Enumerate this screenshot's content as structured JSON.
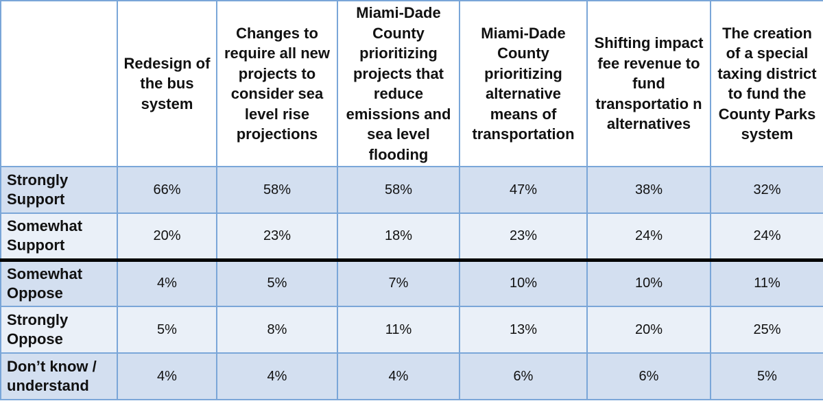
{
  "table": {
    "headers": [
      "",
      "Redesign of the bus system",
      "Changes to require all new projects to consider sea level rise projections",
      "Miami-Dade County prioritizing projects that reduce emissions and sea level flooding",
      "Miami-Dade County prioritizing alternative means of transportation",
      "Shifting impact fee revenue to fund transportatio n alternatives",
      "The creation of a special taxing district to fund the County Parks system"
    ],
    "rows": [
      {
        "label": "Strongly Support",
        "values": [
          "66%",
          "58%",
          "58%",
          "47%",
          "38%",
          "32%"
        ]
      },
      {
        "label": "Somewhat Support",
        "values": [
          "20%",
          "23%",
          "18%",
          "23%",
          "24%",
          "24%"
        ]
      },
      {
        "label": "Somewhat Oppose",
        "values": [
          "4%",
          "5%",
          "7%",
          "10%",
          "10%",
          "11%"
        ]
      },
      {
        "label": "Strongly Oppose",
        "values": [
          "5%",
          "8%",
          "11%",
          "13%",
          "20%",
          "25%"
        ]
      },
      {
        "label": "Don’t know / understand",
        "values": [
          "4%",
          "4%",
          "4%",
          "6%",
          "6%",
          "5%"
        ]
      }
    ]
  },
  "colors": {
    "border": "#7aa6d8",
    "row_shade_dark": "#d3dff0",
    "row_shade_light": "#eaf0f8",
    "divider": "#000000"
  }
}
